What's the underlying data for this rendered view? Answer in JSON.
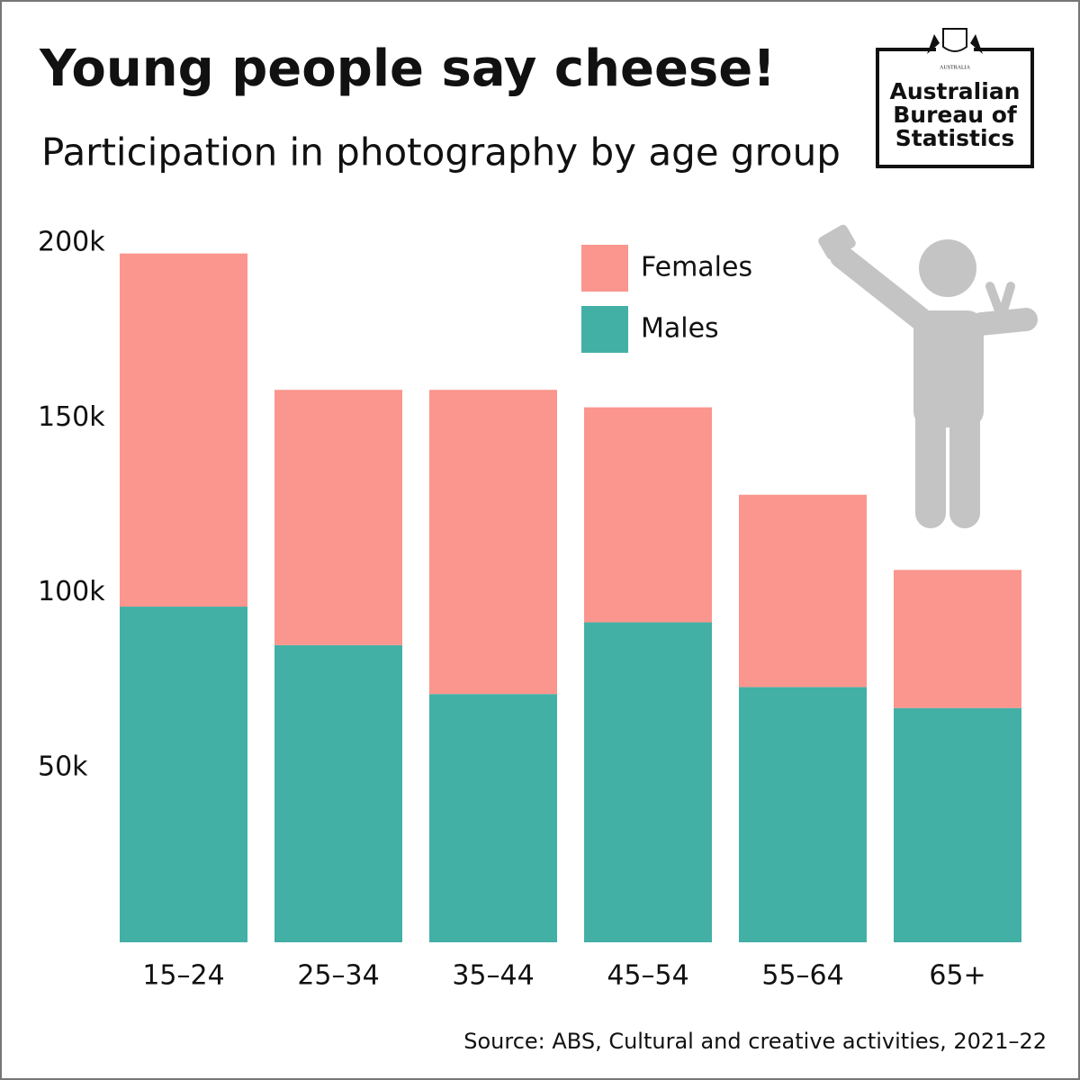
{
  "chart_data": {
    "type": "stacked-bar",
    "title": "Young people say cheese!",
    "subtitle": "Participation in photography by age group",
    "categories": [
      "15–24",
      "25–34",
      "35–44",
      "45–54",
      "55–64",
      "65+"
    ],
    "series": [
      {
        "name": "Males",
        "color": "#43b0a6",
        "values": [
          96000,
          85000,
          71000,
          91500,
          73000,
          67000
        ]
      },
      {
        "name": "Females",
        "color": "#fa968d",
        "values": [
          101000,
          73000,
          87000,
          61500,
          55000,
          39500
        ]
      }
    ],
    "ylim": [
      0,
      200000
    ],
    "yticks": [
      {
        "value": 50000,
        "label": "50k"
      },
      {
        "value": 100000,
        "label": "100k"
      },
      {
        "value": 150000,
        "label": "150k"
      },
      {
        "value": 200000,
        "label": "200k"
      }
    ],
    "grid": false,
    "legend": "top-right",
    "source": "Source: ABS, Cultural and creative activities, 2021–22"
  },
  "logo": {
    "crest": "AUSTRALIA",
    "lines": [
      "Australian",
      "Bureau of",
      "Statistics"
    ]
  }
}
